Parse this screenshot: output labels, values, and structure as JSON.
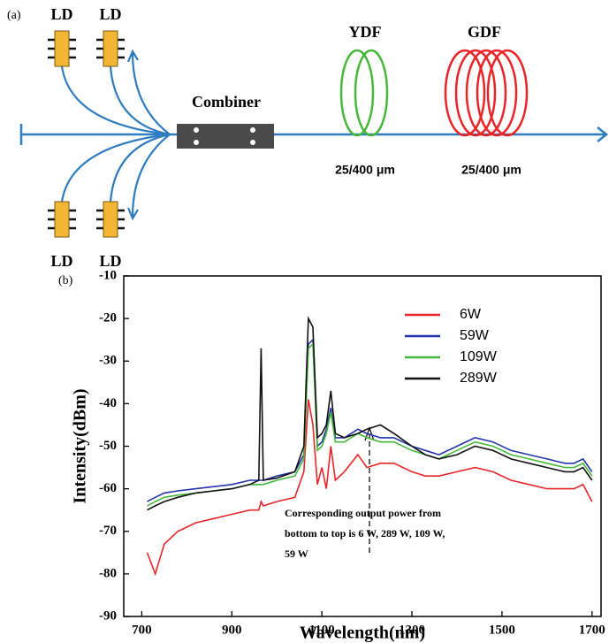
{
  "diagram": {
    "panel_label": "(a)",
    "pumps": [
      "LD",
      "LD",
      "LD",
      "LD"
    ],
    "combiner": "Combiner",
    "fibers": [
      {
        "label": "YDF",
        "spec": "25/400 μm"
      },
      {
        "label": "GDF",
        "spec": "25/400 μm"
      }
    ]
  },
  "chart_data": {
    "type": "line",
    "panel_label": "(b)",
    "x_label": "Wavelength(nm)",
    "y_label": "Intensity(dBm)",
    "annotation": [
      "Corresponding output power from",
      "bottom to top is 6 W, 289 W, 109 W,",
      "59 W"
    ],
    "x": [
      712,
      730,
      750,
      780,
      820,
      860,
      900,
      940,
      960,
      965,
      970,
      1000,
      1040,
      1060,
      1070,
      1080,
      1090,
      1100,
      1110,
      1120,
      1130,
      1150,
      1180,
      1200,
      1230,
      1260,
      1300,
      1330,
      1360,
      1400,
      1440,
      1480,
      1520,
      1560,
      1600,
      1640,
      1660,
      1680,
      1700
    ],
    "series": [
      {
        "name": "6W",
        "color": "#e8262a",
        "values": [
          -75,
          -80,
          -73,
          -70,
          -68,
          -67,
          -66,
          -65,
          -65,
          -63,
          -64,
          -63,
          -62,
          -56,
          -39,
          -45,
          -59,
          -55,
          -60,
          -50,
          -58,
          -56,
          -52,
          -55,
          -54,
          -54,
          -56,
          -57,
          -57,
          -56,
          -55,
          -56,
          -58,
          -59,
          -60,
          -60,
          -60,
          -59,
          -63
        ]
      },
      {
        "name": "59W",
        "color": "#2433a8",
        "values": [
          -63,
          -62,
          -61,
          -60.5,
          -60,
          -59.5,
          -59,
          -58,
          -58,
          -58,
          -58,
          -57,
          -56,
          -52,
          -26,
          -25,
          -50,
          -49,
          -46,
          -41,
          -48,
          -48,
          -46,
          -47,
          -48,
          -48,
          -50,
          -51,
          -52,
          -50,
          -48,
          -49,
          -51,
          -52,
          -53,
          -54,
          -54,
          -53,
          -56
        ]
      },
      {
        "name": "109W",
        "color": "#45b83c",
        "values": [
          -64,
          -63,
          -62,
          -61.5,
          -61,
          -60.5,
          -60,
          -59,
          -59,
          -59,
          -59,
          -58,
          -57,
          -53,
          -27,
          -26,
          -51,
          -50,
          -47,
          -42,
          -49,
          -49,
          -47,
          -48,
          -49,
          -49,
          -51,
          -52,
          -53,
          -51,
          -49,
          -50,
          -52,
          -53,
          -54,
          -55,
          -55,
          -54,
          -57
        ]
      },
      {
        "name": "289W",
        "color": "#111111",
        "values": [
          -65,
          -64,
          -63,
          -62,
          -61,
          -60.5,
          -60,
          -59,
          -58,
          -27,
          -58,
          -57.5,
          -56,
          -50,
          -20,
          -22,
          -48,
          -47,
          -45,
          -37,
          -47,
          -48,
          -47,
          -46,
          -45,
          -47,
          -50,
          -52,
          -53,
          -52,
          -50,
          -51,
          -53,
          -54,
          -55,
          -56,
          -56,
          -55,
          -58
        ]
      }
    ],
    "xlim": [
      660,
      1720
    ],
    "xticks": [
      700,
      900,
      1100,
      1300,
      1500,
      1700
    ],
    "ylim": [
      -90,
      -10
    ],
    "yticks": [
      -90,
      -80,
      -70,
      -60,
      -50,
      -40,
      -30,
      -20,
      -10
    ],
    "legend": "upper right"
  }
}
